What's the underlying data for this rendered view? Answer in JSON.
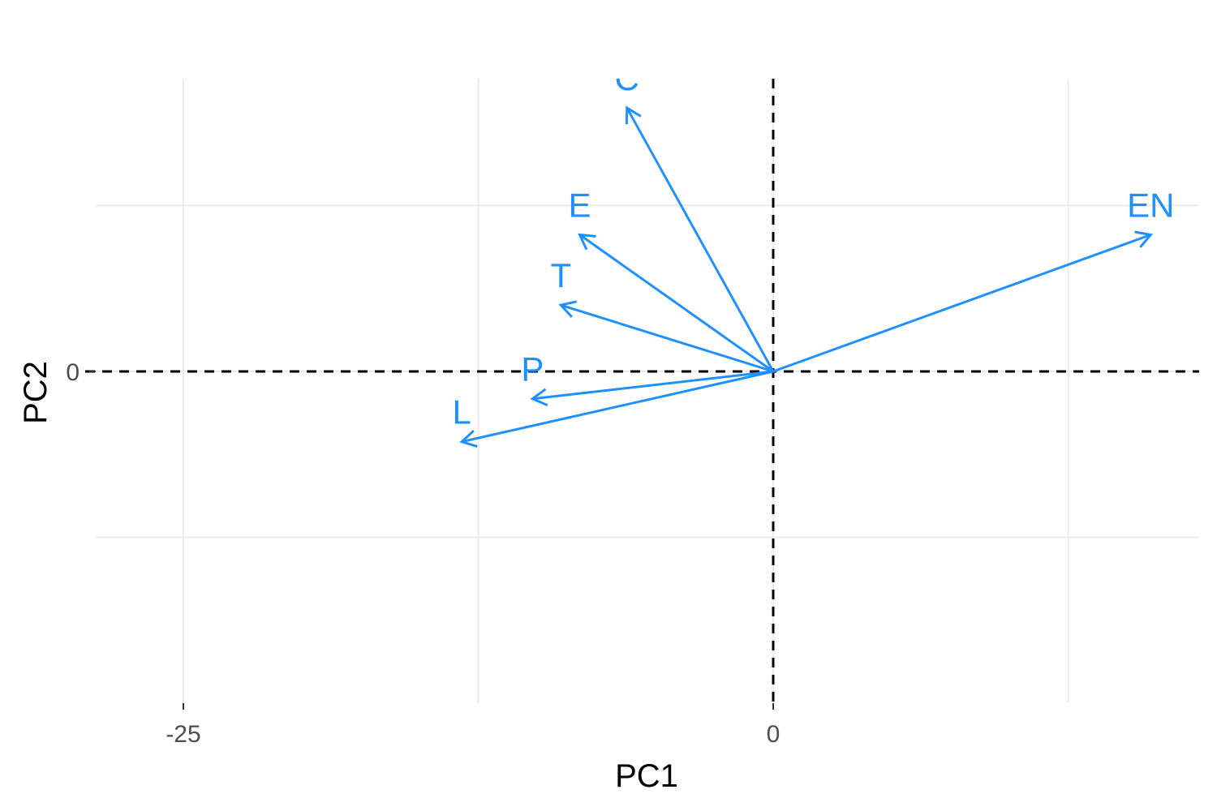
{
  "chart_data": {
    "type": "scatter",
    "subtype": "pca-loadings-biplot",
    "title": "",
    "xlabel": "PC1",
    "ylabel": "PC2",
    "xlim": [
      -28,
      18
    ],
    "ylim": [
      -17,
      16
    ],
    "x_ticks": [
      -25,
      0
    ],
    "x_tick_labels": [
      "-25",
      "0"
    ],
    "y_ticks": [
      0
    ],
    "y_tick_labels": [
      "0"
    ],
    "minor_x_grid": [
      -12.5,
      12.5
    ],
    "minor_y_grid": [
      -8.5,
      8.5
    ],
    "grid": true,
    "reference_lines": {
      "x": 0,
      "y": 0,
      "style": "dashed"
    },
    "arrow_color": "#1e90ff",
    "vectors": [
      {
        "name": "C",
        "x": -6.2,
        "y": 13.5
      },
      {
        "name": "E",
        "x": -8.2,
        "y": 7.0
      },
      {
        "name": "T",
        "x": -9.0,
        "y": 3.4
      },
      {
        "name": "P",
        "x": -10.2,
        "y": -1.4
      },
      {
        "name": "L",
        "x": -13.2,
        "y": -3.6
      },
      {
        "name": "EN",
        "x": 16.0,
        "y": 7.0
      }
    ]
  }
}
